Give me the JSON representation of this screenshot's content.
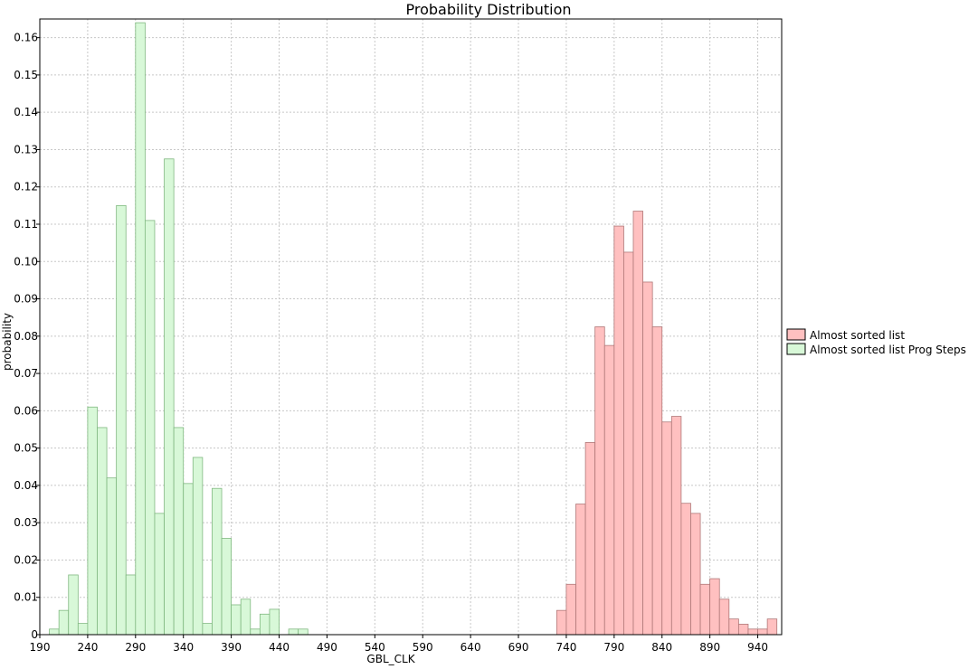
{
  "chart_data": {
    "type": "bar",
    "title": "Probability Distribution",
    "xlabel": "GBL_CLK",
    "ylabel": "probability",
    "xlim": [
      190,
      965
    ],
    "ylim": [
      0,
      0.165
    ],
    "xticks": [
      190,
      240,
      290,
      340,
      390,
      440,
      490,
      540,
      590,
      640,
      690,
      740,
      790,
      840,
      890,
      940
    ],
    "yticks": [
      0,
      0.01,
      0.02,
      0.03,
      0.04,
      0.05,
      0.06,
      0.07,
      0.08,
      0.09,
      0.1,
      0.11,
      0.12,
      0.13,
      0.14,
      0.15,
      0.16
    ],
    "ytick_labels": [
      "0",
      "0.01",
      "0.02",
      "0.03",
      "0.04",
      "0.05",
      "0.06",
      "0.07",
      "0.08",
      "0.09",
      "0.10",
      "0.11",
      "0.12",
      "0.13",
      "0.14",
      "0.15",
      "0.16"
    ],
    "bin_width": 10,
    "grid": true,
    "legend_position": "right",
    "series": [
      {
        "name": "Almost sorted list",
        "color": "#ffc0c0",
        "stroke": "#b07878",
        "bin_start": 730,
        "values": [
          0.0065,
          0.0135,
          0.035,
          0.0515,
          0.0825,
          0.0775,
          0.1095,
          0.1025,
          0.1135,
          0.0945,
          0.0825,
          0.057,
          0.0585,
          0.0352,
          0.0325,
          0.0135,
          0.015,
          0.0095,
          0.0042,
          0.0028,
          0.0015,
          0.0015,
          0.0042
        ]
      },
      {
        "name": "Almost sorted list Prog Steps",
        "color": "#d8f8d8",
        "stroke": "#80b880",
        "bin_start": 200,
        "values": [
          0.0015,
          0.0065,
          0.016,
          0.003,
          0.061,
          0.0555,
          0.042,
          0.115,
          0.016,
          0.164,
          0.111,
          0.0325,
          0.1275,
          0.0555,
          0.0405,
          0.0475,
          0.003,
          0.0392,
          0.0258,
          0.008,
          0.0095,
          0.0015,
          0.0055,
          0.0068,
          0,
          0.0015,
          0.0015
        ]
      }
    ]
  }
}
